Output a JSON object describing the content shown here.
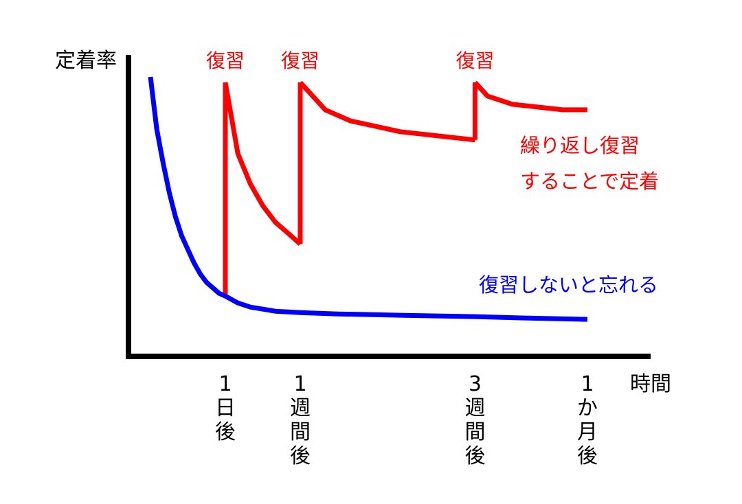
{
  "chart_data": {
    "type": "line",
    "ylabel": "定着率",
    "xlabel": "時間",
    "ticks": [
      {
        "x": 1,
        "label": "1\n日\n後"
      },
      {
        "x": 7,
        "label": "1\n週\n間\n後"
      },
      {
        "x": 21,
        "label": "3\n週\n間\n後"
      },
      {
        "x": 30,
        "label": "1\nか\n月\n後"
      }
    ],
    "review_markers": [
      {
        "x": 1,
        "label": "復習"
      },
      {
        "x": 7,
        "label": "復習"
      },
      {
        "x": 21,
        "label": "復習"
      }
    ],
    "series": [
      {
        "color": "#ff0000",
        "segments": [
          {
            "points": [
              [
                1,
                22
              ],
              [
                1,
                100
              ]
            ]
          },
          {
            "points": [
              [
                1,
                100
              ],
              [
                2,
                74
              ],
              [
                3,
                63
              ],
              [
                4,
                55
              ],
              [
                5,
                49
              ],
              [
                6,
                45
              ],
              [
                7,
                41
              ]
            ]
          },
          {
            "points": [
              [
                7,
                41
              ],
              [
                7,
                100
              ]
            ]
          },
          {
            "points": [
              [
                7,
                100
              ],
              [
                9,
                90
              ],
              [
                11,
                86
              ],
              [
                13,
                84
              ],
              [
                15,
                82
              ],
              [
                17,
                81
              ],
              [
                19,
                80
              ],
              [
                21,
                79
              ]
            ]
          },
          {
            "points": [
              [
                21,
                79
              ],
              [
                21,
                100
              ]
            ]
          },
          {
            "points": [
              [
                21,
                100
              ],
              [
                22,
                95
              ],
              [
                24,
                92
              ],
              [
                26,
                91
              ],
              [
                28,
                90
              ],
              [
                30,
                90
              ]
            ]
          }
        ],
        "annotation": "繰り返し復習\nすることで定着"
      },
      {
        "color": "#0000ff",
        "segments": [
          {
            "points": [
              [
                -5,
                102
              ],
              [
                -4.5,
                83
              ],
              [
                -4,
                71
              ],
              [
                -3.5,
                60
              ],
              [
                -3,
                51
              ],
              [
                -2.5,
                44
              ],
              [
                -2,
                39
              ],
              [
                -1.5,
                34
              ],
              [
                -1,
                30
              ],
              [
                -0.5,
                27
              ],
              [
                0,
                25
              ],
              [
                0.5,
                23
              ],
              [
                1,
                22
              ],
              [
                2,
                19.5
              ],
              [
                3,
                18
              ],
              [
                5,
                16.5
              ],
              [
                7,
                16
              ],
              [
                10,
                15.5
              ],
              [
                15,
                15
              ],
              [
                21,
                14.5
              ],
              [
                25,
                14
              ],
              [
                30,
                13.5
              ]
            ]
          }
        ],
        "annotation": "復習しないと忘れる"
      }
    ]
  }
}
